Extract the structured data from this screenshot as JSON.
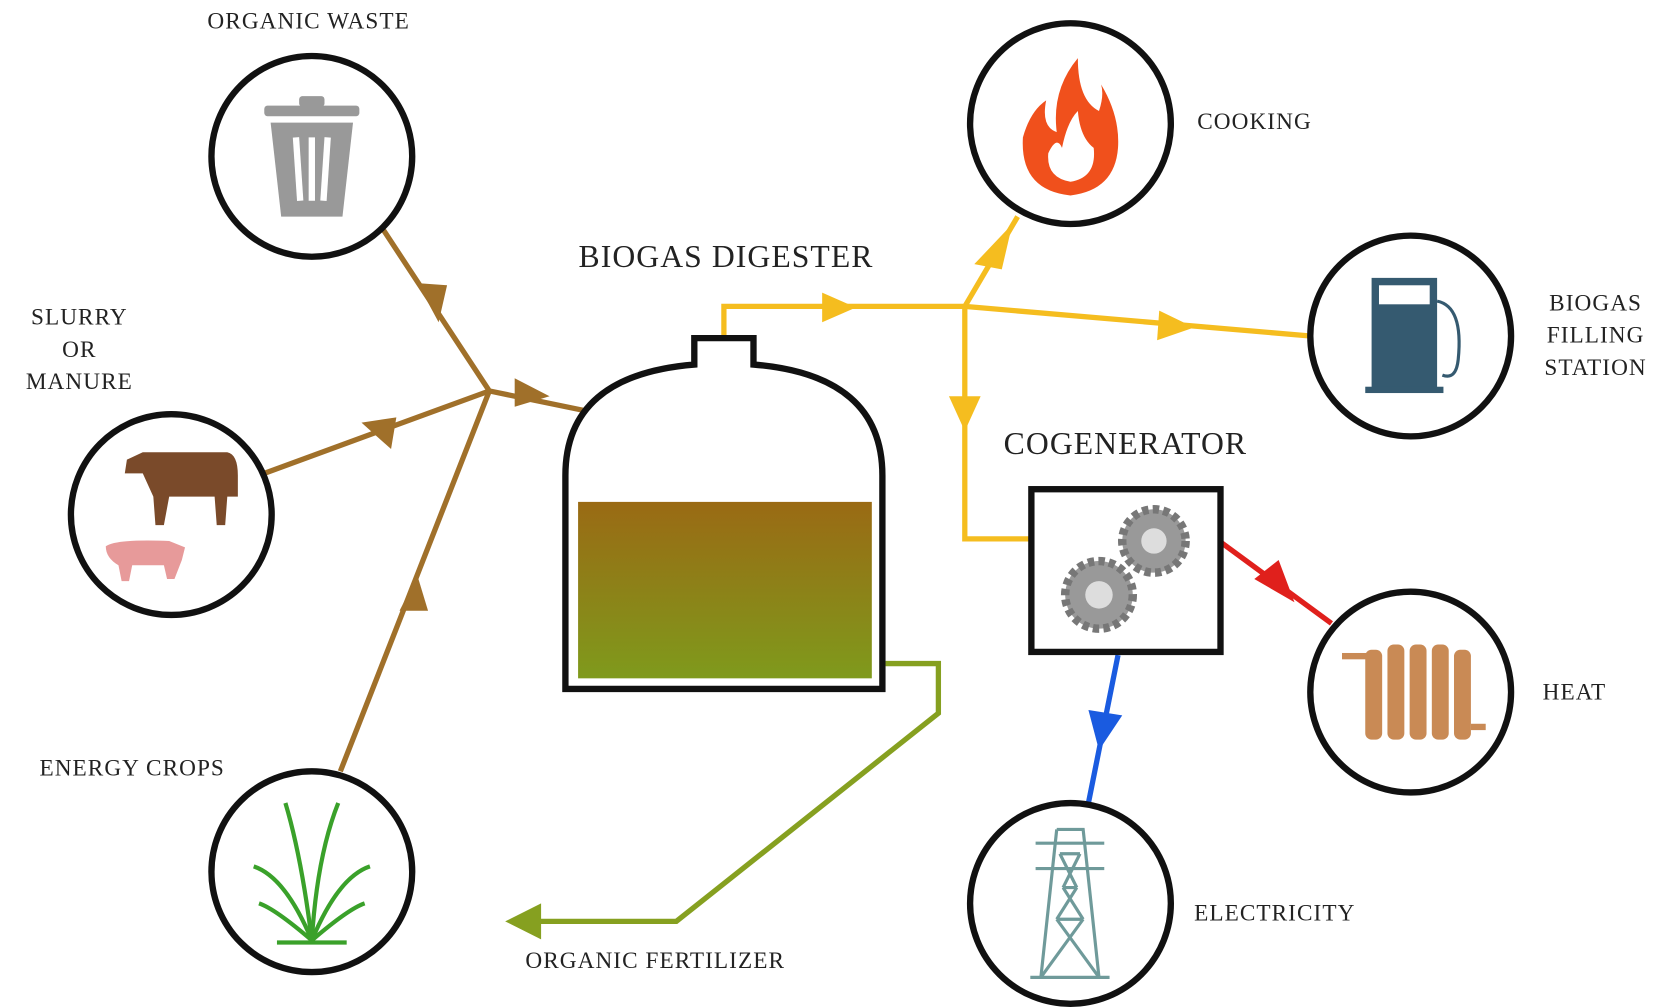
{
  "digester": {
    "label": "BIOGAS DIGESTER"
  },
  "cogenerator": {
    "label": "COGENERATOR"
  },
  "inputs": [
    {
      "label": [
        "ORGANIC WASTE"
      ]
    },
    {
      "label": [
        "SLURRY",
        "OR",
        "MANURE"
      ]
    },
    {
      "label": [
        "ENERGY CROPS"
      ]
    }
  ],
  "outputs": [
    {
      "label": [
        "COOKING"
      ]
    },
    {
      "label": [
        "BIOGAS",
        "FILLING",
        "STATION"
      ]
    },
    {
      "label": [
        "HEAT"
      ]
    },
    {
      "label": [
        "ELECTRICITY"
      ]
    },
    {
      "label": [
        "ORGANIC FERTILIZER"
      ]
    }
  ]
}
